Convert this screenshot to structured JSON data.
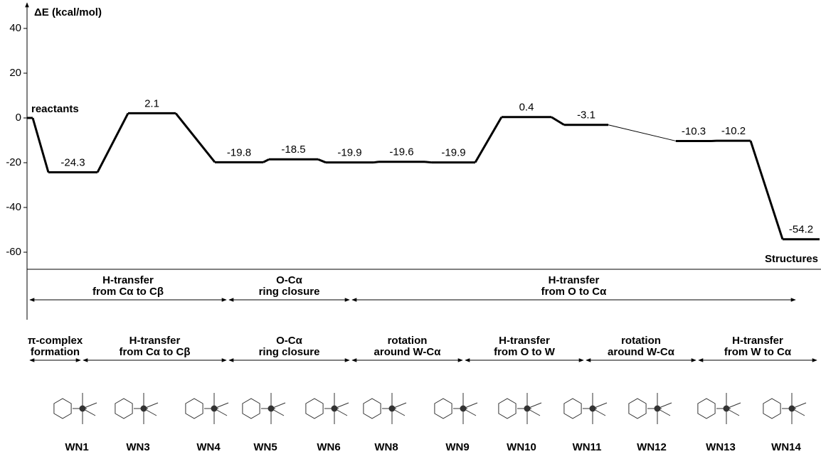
{
  "chart_data": {
    "type": "energy-profile",
    "y_label": "ΔE (kcal/mol)",
    "x_label": "Structures",
    "ylim": [
      -68,
      51
    ],
    "yticks": [
      -60,
      -40,
      -20,
      0,
      20,
      40
    ],
    "color": "#000000",
    "categories": [
      "reactants",
      null,
      null,
      null,
      null,
      null,
      null,
      null,
      null,
      null,
      null,
      null,
      null
    ],
    "values": [
      0,
      -24.3,
      2.1,
      -19.8,
      -18.5,
      -19.9,
      -19.6,
      -19.9,
      0.4,
      -3.1,
      -10.3,
      -10.2,
      -54.2
    ],
    "process_groups": [
      {
        "lines": [
          "H-transfer",
          "from Cα to Cβ"
        ]
      },
      {
        "lines": [
          "O-Cα",
          "ring closure"
        ]
      },
      {
        "lines": [
          "H-transfer",
          "from O to Cα"
        ]
      }
    ],
    "steps": [
      {
        "lines": [
          "π-complex",
          "formation"
        ]
      },
      {
        "lines": [
          "H-transfer",
          "from Cα to Cβ"
        ]
      },
      {
        "lines": [
          "O-Cα",
          "ring closure"
        ]
      },
      {
        "lines": [
          "rotation",
          "around W-Cα"
        ]
      },
      {
        "lines": [
          "H-transfer",
          "from O to W"
        ]
      },
      {
        "lines": [
          "rotation",
          "around W-Cα"
        ]
      },
      {
        "lines": [
          "H-transfer",
          "from W to Cα"
        ]
      }
    ],
    "structures": [
      "WN1",
      "WN3",
      "WN4",
      "WN5",
      "WN6",
      "WN8",
      "WN9",
      "WN10",
      "WN11",
      "WN12",
      "WN13",
      "WN14"
    ]
  }
}
